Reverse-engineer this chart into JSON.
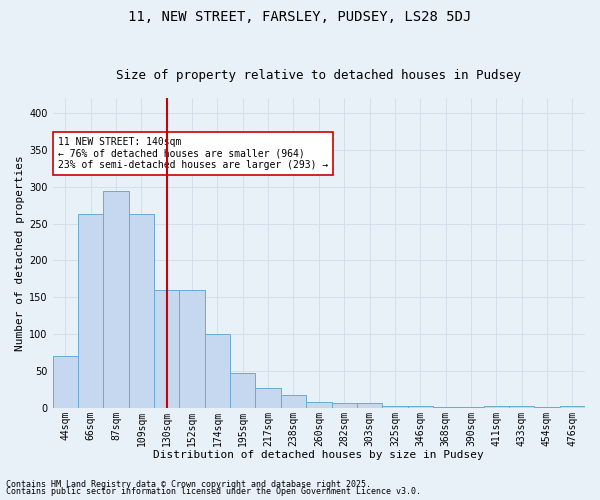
{
  "title1": "11, NEW STREET, FARSLEY, PUDSEY, LS28 5DJ",
  "title2": "Size of property relative to detached houses in Pudsey",
  "xlabel": "Distribution of detached houses by size in Pudsey",
  "ylabel": "Number of detached properties",
  "bar_labels": [
    "44sqm",
    "66sqm",
    "87sqm",
    "109sqm",
    "130sqm",
    "152sqm",
    "174sqm",
    "195sqm",
    "217sqm",
    "238sqm",
    "260sqm",
    "282sqm",
    "303sqm",
    "325sqm",
    "346sqm",
    "368sqm",
    "390sqm",
    "411sqm",
    "433sqm",
    "454sqm",
    "476sqm"
  ],
  "bar_values": [
    70,
    263,
    295,
    263,
    160,
    160,
    100,
    47,
    27,
    18,
    8,
    7,
    7,
    3,
    2,
    1,
    1,
    3,
    3,
    1,
    3
  ],
  "bar_color": "#c5d8ef",
  "bar_edge_color": "#6aaad4",
  "vline_x": 4.0,
  "vline_color": "#cc0000",
  "annotation_text": "11 NEW STREET: 140sqm\n← 76% of detached houses are smaller (964)\n23% of semi-detached houses are larger (293) →",
  "annotation_box_color": "#ffffff",
  "annotation_box_edge": "#cc0000",
  "bg_color": "#e8f0f8",
  "plot_bg_color": "#e8f0f8",
  "grid_color": "#d0dce8",
  "footnote1": "Contains HM Land Registry data © Crown copyright and database right 2025.",
  "footnote2": "Contains public sector information licensed under the Open Government Licence v3.0.",
  "ylim": [
    0,
    420
  ],
  "yticks": [
    0,
    50,
    100,
    150,
    200,
    250,
    300,
    350,
    400
  ],
  "title1_fontsize": 10,
  "title2_fontsize": 9,
  "xlabel_fontsize": 8,
  "ylabel_fontsize": 8,
  "tick_fontsize": 7,
  "annot_fontsize": 7,
  "footnote_fontsize": 6
}
